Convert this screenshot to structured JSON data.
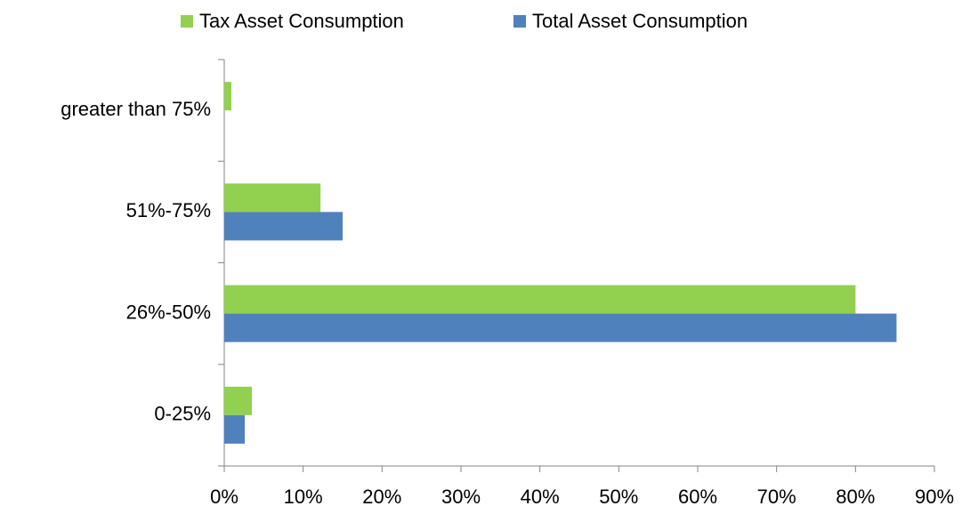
{
  "chart_data": {
    "type": "bar",
    "orientation": "horizontal",
    "categories": [
      "0-25%",
      "26%-50%",
      "51%-75%",
      "greater than 75%"
    ],
    "series": [
      {
        "name": "Tax Asset Consumption",
        "color": "#92d050",
        "values": [
          3.5,
          80,
          12.2,
          0.9
        ]
      },
      {
        "name": "Total Asset Consumption",
        "color": "#4f81bd",
        "values": [
          2.6,
          85.2,
          15,
          0
        ]
      }
    ],
    "xlim": [
      0,
      90
    ],
    "xticks": [
      {
        "value": 0,
        "label": "0%"
      },
      {
        "value": 10,
        "label": "10%"
      },
      {
        "value": 20,
        "label": "20%"
      },
      {
        "value": 30,
        "label": "30%"
      },
      {
        "value": 40,
        "label": "40%"
      },
      {
        "value": 50,
        "label": "50%"
      },
      {
        "value": 60,
        "label": "60%"
      },
      {
        "value": 70,
        "label": "70%"
      },
      {
        "value": 80,
        "label": "80%"
      },
      {
        "value": 90,
        "label": "90%"
      }
    ],
    "legend": "top"
  }
}
